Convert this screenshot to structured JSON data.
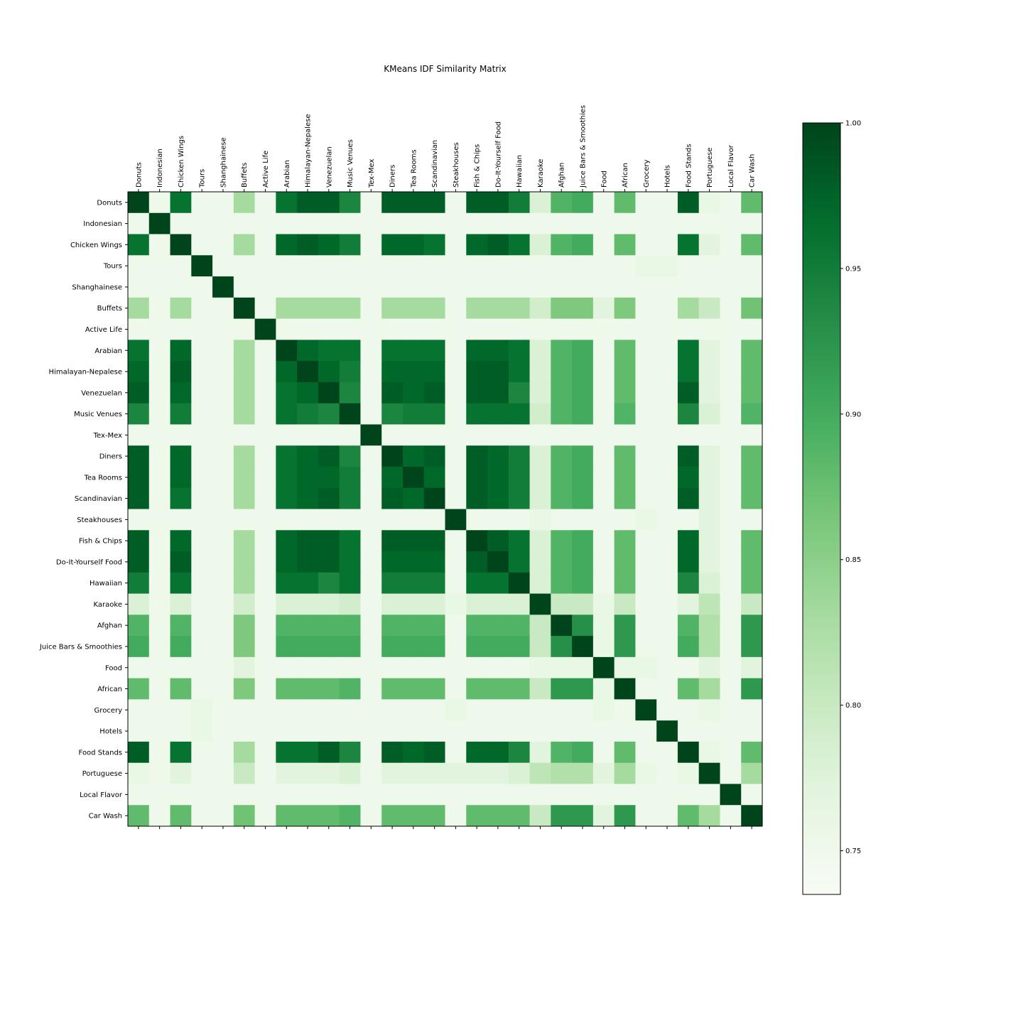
{
  "chart_data": {
    "type": "heatmap",
    "title": "KMeans IDF Similarity Matrix",
    "labels": [
      "Donuts",
      "Indonesian",
      "Chicken Wings",
      "Tours",
      "Shanghainese",
      "Buffets",
      "Active Life",
      "Arabian",
      "Himalayan-Nepalese",
      "Venezuelan",
      "Music Venues",
      "Tex-Mex",
      "Diners",
      "Tea Rooms",
      "Scandinavian",
      "Steakhouses",
      "Fish & Chips",
      "Do-It-Yourself Food",
      "Hawaiian",
      "Karaoke",
      "Afghan",
      "Juice Bars & Smoothies",
      "Food",
      "African",
      "Grocery",
      "Hotels",
      "Food Stands",
      "Portuguese",
      "Local Flavor",
      "Car Wash"
    ],
    "values": [
      [
        1.0,
        0.75,
        0.96,
        0.75,
        0.75,
        0.83,
        0.75,
        0.96,
        0.98,
        0.98,
        0.94,
        0.75,
        0.98,
        0.98,
        0.98,
        0.75,
        0.98,
        0.98,
        0.95,
        0.78,
        0.89,
        0.9,
        0.75,
        0.88,
        0.75,
        0.75,
        0.98,
        0.76,
        0.75,
        0.88
      ],
      [
        0.75,
        1.0,
        0.75,
        0.75,
        0.75,
        0.75,
        0.75,
        0.75,
        0.75,
        0.75,
        0.75,
        0.75,
        0.75,
        0.75,
        0.75,
        0.75,
        0.75,
        0.75,
        0.75,
        0.75,
        0.75,
        0.75,
        0.75,
        0.75,
        0.75,
        0.75,
        0.75,
        0.75,
        0.75,
        0.75
      ],
      [
        0.96,
        0.75,
        1.0,
        0.75,
        0.75,
        0.83,
        0.75,
        0.97,
        0.98,
        0.97,
        0.95,
        0.75,
        0.97,
        0.97,
        0.96,
        0.75,
        0.97,
        0.98,
        0.96,
        0.78,
        0.89,
        0.9,
        0.75,
        0.88,
        0.75,
        0.75,
        0.96,
        0.77,
        0.75,
        0.88
      ],
      [
        0.75,
        0.75,
        0.75,
        1.0,
        0.75,
        0.75,
        0.75,
        0.75,
        0.75,
        0.75,
        0.75,
        0.75,
        0.75,
        0.75,
        0.75,
        0.75,
        0.75,
        0.75,
        0.75,
        0.75,
        0.75,
        0.75,
        0.75,
        0.75,
        0.76,
        0.76,
        0.75,
        0.75,
        0.75,
        0.75
      ],
      [
        0.75,
        0.75,
        0.75,
        0.75,
        1.0,
        0.75,
        0.75,
        0.75,
        0.75,
        0.75,
        0.75,
        0.75,
        0.75,
        0.75,
        0.75,
        0.75,
        0.75,
        0.75,
        0.75,
        0.75,
        0.75,
        0.75,
        0.75,
        0.75,
        0.75,
        0.75,
        0.75,
        0.75,
        0.75,
        0.75
      ],
      [
        0.83,
        0.75,
        0.83,
        0.75,
        0.75,
        1.0,
        0.75,
        0.83,
        0.83,
        0.83,
        0.83,
        0.75,
        0.83,
        0.83,
        0.83,
        0.75,
        0.83,
        0.83,
        0.83,
        0.79,
        0.86,
        0.86,
        0.77,
        0.86,
        0.75,
        0.75,
        0.83,
        0.8,
        0.75,
        0.87
      ],
      [
        0.75,
        0.75,
        0.75,
        0.75,
        0.75,
        0.75,
        1.0,
        0.75,
        0.75,
        0.75,
        0.75,
        0.75,
        0.75,
        0.75,
        0.75,
        0.75,
        0.75,
        0.75,
        0.75,
        0.75,
        0.75,
        0.75,
        0.75,
        0.75,
        0.75,
        0.75,
        0.75,
        0.75,
        0.75,
        0.75
      ],
      [
        0.96,
        0.75,
        0.97,
        0.75,
        0.75,
        0.83,
        0.75,
        1.0,
        0.97,
        0.96,
        0.96,
        0.75,
        0.96,
        0.96,
        0.96,
        0.75,
        0.97,
        0.97,
        0.96,
        0.78,
        0.89,
        0.9,
        0.75,
        0.88,
        0.75,
        0.75,
        0.96,
        0.77,
        0.75,
        0.88
      ],
      [
        0.97,
        0.75,
        0.98,
        0.75,
        0.75,
        0.83,
        0.75,
        0.97,
        1.0,
        0.97,
        0.95,
        0.75,
        0.97,
        0.97,
        0.97,
        0.75,
        0.98,
        0.98,
        0.96,
        0.78,
        0.89,
        0.9,
        0.75,
        0.88,
        0.75,
        0.75,
        0.96,
        0.77,
        0.75,
        0.88
      ],
      [
        0.98,
        0.75,
        0.97,
        0.75,
        0.75,
        0.83,
        0.75,
        0.96,
        0.97,
        1.0,
        0.94,
        0.75,
        0.98,
        0.97,
        0.98,
        0.75,
        0.98,
        0.98,
        0.94,
        0.78,
        0.89,
        0.9,
        0.75,
        0.88,
        0.75,
        0.75,
        0.98,
        0.77,
        0.75,
        0.88
      ],
      [
        0.94,
        0.75,
        0.95,
        0.75,
        0.75,
        0.83,
        0.75,
        0.96,
        0.95,
        0.94,
        1.0,
        0.75,
        0.94,
        0.95,
        0.95,
        0.75,
        0.96,
        0.96,
        0.96,
        0.79,
        0.89,
        0.9,
        0.75,
        0.89,
        0.75,
        0.75,
        0.94,
        0.78,
        0.75,
        0.89
      ],
      [
        0.75,
        0.75,
        0.75,
        0.75,
        0.75,
        0.75,
        0.75,
        0.75,
        0.75,
        0.75,
        0.75,
        1.0,
        0.75,
        0.75,
        0.75,
        0.75,
        0.75,
        0.75,
        0.75,
        0.75,
        0.75,
        0.75,
        0.75,
        0.75,
        0.75,
        0.75,
        0.75,
        0.75,
        0.75,
        0.75
      ],
      [
        0.98,
        0.75,
        0.97,
        0.75,
        0.75,
        0.83,
        0.75,
        0.96,
        0.97,
        0.98,
        0.94,
        0.75,
        1.0,
        0.97,
        0.98,
        0.75,
        0.98,
        0.97,
        0.95,
        0.78,
        0.89,
        0.9,
        0.75,
        0.88,
        0.75,
        0.75,
        0.98,
        0.77,
        0.75,
        0.88
      ],
      [
        0.98,
        0.75,
        0.97,
        0.75,
        0.75,
        0.83,
        0.75,
        0.96,
        0.97,
        0.97,
        0.95,
        0.75,
        0.97,
        1.0,
        0.97,
        0.75,
        0.98,
        0.97,
        0.95,
        0.78,
        0.89,
        0.9,
        0.75,
        0.88,
        0.75,
        0.75,
        0.97,
        0.77,
        0.75,
        0.88
      ],
      [
        0.98,
        0.75,
        0.96,
        0.75,
        0.75,
        0.83,
        0.75,
        0.96,
        0.97,
        0.98,
        0.95,
        0.75,
        0.98,
        0.97,
        1.0,
        0.75,
        0.98,
        0.97,
        0.95,
        0.78,
        0.89,
        0.9,
        0.75,
        0.88,
        0.75,
        0.75,
        0.98,
        0.77,
        0.75,
        0.88
      ],
      [
        0.75,
        0.75,
        0.75,
        0.75,
        0.75,
        0.75,
        0.75,
        0.75,
        0.75,
        0.75,
        0.75,
        0.75,
        0.75,
        0.75,
        0.75,
        1.0,
        0.75,
        0.75,
        0.75,
        0.76,
        0.75,
        0.75,
        0.75,
        0.75,
        0.76,
        0.75,
        0.75,
        0.77,
        0.75,
        0.75
      ],
      [
        0.98,
        0.75,
        0.97,
        0.75,
        0.75,
        0.83,
        0.75,
        0.97,
        0.98,
        0.98,
        0.96,
        0.75,
        0.98,
        0.98,
        0.98,
        0.75,
        1.0,
        0.98,
        0.96,
        0.78,
        0.89,
        0.9,
        0.75,
        0.88,
        0.75,
        0.75,
        0.97,
        0.77,
        0.75,
        0.88
      ],
      [
        0.98,
        0.75,
        0.98,
        0.75,
        0.75,
        0.83,
        0.75,
        0.97,
        0.98,
        0.98,
        0.96,
        0.75,
        0.97,
        0.97,
        0.97,
        0.75,
        0.98,
        1.0,
        0.96,
        0.78,
        0.89,
        0.9,
        0.75,
        0.88,
        0.75,
        0.75,
        0.97,
        0.77,
        0.75,
        0.88
      ],
      [
        0.95,
        0.75,
        0.96,
        0.75,
        0.75,
        0.83,
        0.75,
        0.96,
        0.96,
        0.94,
        0.96,
        0.75,
        0.95,
        0.95,
        0.95,
        0.75,
        0.96,
        0.96,
        1.0,
        0.78,
        0.89,
        0.9,
        0.75,
        0.88,
        0.75,
        0.75,
        0.94,
        0.78,
        0.75,
        0.88
      ],
      [
        0.78,
        0.75,
        0.78,
        0.75,
        0.75,
        0.79,
        0.75,
        0.78,
        0.78,
        0.78,
        0.79,
        0.75,
        0.78,
        0.78,
        0.78,
        0.76,
        0.78,
        0.78,
        0.78,
        1.0,
        0.8,
        0.8,
        0.76,
        0.8,
        0.75,
        0.75,
        0.77,
        0.81,
        0.75,
        0.8
      ],
      [
        0.89,
        0.75,
        0.89,
        0.75,
        0.75,
        0.86,
        0.75,
        0.89,
        0.89,
        0.89,
        0.89,
        0.75,
        0.89,
        0.89,
        0.89,
        0.75,
        0.89,
        0.89,
        0.89,
        0.8,
        1.0,
        0.93,
        0.76,
        0.92,
        0.75,
        0.75,
        0.89,
        0.82,
        0.75,
        0.92
      ],
      [
        0.9,
        0.75,
        0.9,
        0.75,
        0.75,
        0.86,
        0.75,
        0.9,
        0.9,
        0.9,
        0.9,
        0.75,
        0.9,
        0.9,
        0.9,
        0.75,
        0.9,
        0.9,
        0.9,
        0.8,
        0.93,
        1.0,
        0.76,
        0.92,
        0.75,
        0.75,
        0.9,
        0.82,
        0.75,
        0.92
      ],
      [
        0.75,
        0.75,
        0.75,
        0.75,
        0.75,
        0.77,
        0.75,
        0.75,
        0.75,
        0.75,
        0.75,
        0.75,
        0.75,
        0.75,
        0.75,
        0.75,
        0.75,
        0.75,
        0.75,
        0.76,
        0.76,
        0.76,
        1.0,
        0.76,
        0.76,
        0.75,
        0.75,
        0.77,
        0.75,
        0.77
      ],
      [
        0.88,
        0.75,
        0.88,
        0.75,
        0.75,
        0.86,
        0.75,
        0.88,
        0.88,
        0.88,
        0.89,
        0.75,
        0.88,
        0.88,
        0.88,
        0.75,
        0.88,
        0.88,
        0.88,
        0.8,
        0.92,
        0.92,
        0.76,
        1.0,
        0.75,
        0.75,
        0.88,
        0.83,
        0.75,
        0.92
      ],
      [
        0.75,
        0.75,
        0.75,
        0.76,
        0.75,
        0.75,
        0.75,
        0.75,
        0.75,
        0.75,
        0.75,
        0.75,
        0.75,
        0.75,
        0.75,
        0.76,
        0.75,
        0.75,
        0.75,
        0.75,
        0.75,
        0.75,
        0.76,
        0.75,
        1.0,
        0.75,
        0.75,
        0.76,
        0.75,
        0.75
      ],
      [
        0.75,
        0.75,
        0.75,
        0.76,
        0.75,
        0.75,
        0.75,
        0.75,
        0.75,
        0.75,
        0.75,
        0.75,
        0.75,
        0.75,
        0.75,
        0.75,
        0.75,
        0.75,
        0.75,
        0.75,
        0.75,
        0.75,
        0.75,
        0.75,
        0.75,
        1.0,
        0.75,
        0.75,
        0.75,
        0.75
      ],
      [
        0.98,
        0.75,
        0.96,
        0.75,
        0.75,
        0.83,
        0.75,
        0.96,
        0.96,
        0.98,
        0.94,
        0.75,
        0.98,
        0.97,
        0.98,
        0.75,
        0.97,
        0.97,
        0.94,
        0.77,
        0.89,
        0.9,
        0.75,
        0.88,
        0.75,
        0.75,
        1.0,
        0.76,
        0.75,
        0.88
      ],
      [
        0.76,
        0.75,
        0.77,
        0.75,
        0.75,
        0.8,
        0.75,
        0.77,
        0.77,
        0.77,
        0.78,
        0.75,
        0.77,
        0.77,
        0.77,
        0.77,
        0.77,
        0.77,
        0.78,
        0.81,
        0.82,
        0.82,
        0.77,
        0.83,
        0.76,
        0.75,
        0.76,
        1.0,
        0.75,
        0.83
      ],
      [
        0.75,
        0.75,
        0.75,
        0.75,
        0.75,
        0.75,
        0.75,
        0.75,
        0.75,
        0.75,
        0.75,
        0.75,
        0.75,
        0.75,
        0.75,
        0.75,
        0.75,
        0.75,
        0.75,
        0.75,
        0.75,
        0.75,
        0.75,
        0.75,
        0.75,
        0.75,
        0.75,
        0.75,
        1.0,
        0.75
      ],
      [
        0.88,
        0.75,
        0.88,
        0.75,
        0.75,
        0.87,
        0.75,
        0.88,
        0.88,
        0.88,
        0.89,
        0.75,
        0.88,
        0.88,
        0.88,
        0.75,
        0.88,
        0.88,
        0.88,
        0.8,
        0.92,
        0.92,
        0.77,
        0.92,
        0.75,
        0.75,
        0.88,
        0.83,
        0.75,
        1.0
      ]
    ],
    "colorbar": {
      "min": 0.735,
      "max": 1.0,
      "ticks": [
        "1.00",
        "0.95",
        "0.90",
        "0.85",
        "0.80",
        "0.75"
      ],
      "colormap": "Greens",
      "stops": [
        "#f7fcf5",
        "#e5f5e0",
        "#c7e9c0",
        "#a1d99b",
        "#74c476",
        "#41ab5d",
        "#238b45",
        "#006d2c",
        "#00441b"
      ]
    }
  }
}
